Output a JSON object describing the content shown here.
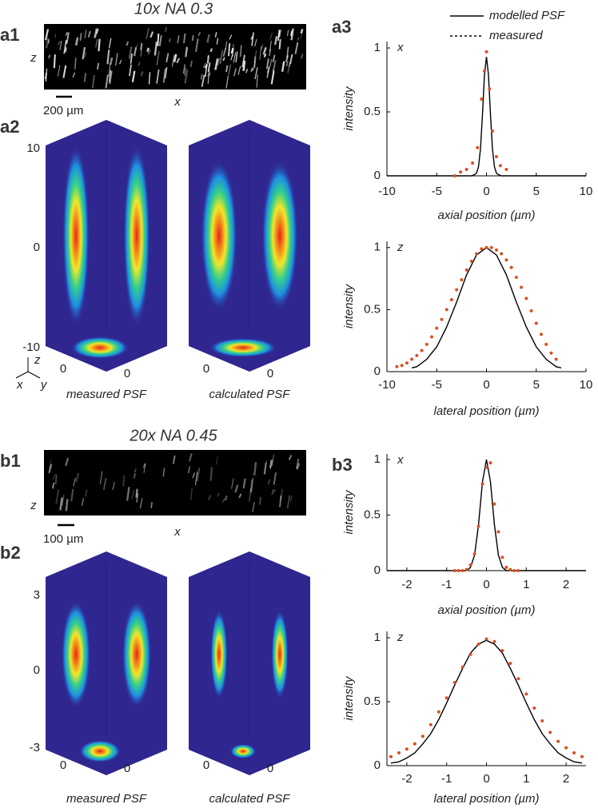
{
  "sections": [
    {
      "panel_image": "a1",
      "title": "10x NA 0.3",
      "z_label": "z",
      "x_label": "x",
      "scale_bar": "200 µm",
      "panel_psf": "a2",
      "psf_ticks": [
        10,
        0,
        -10
      ],
      "psf_base_ticks": [
        0,
        0
      ],
      "measured_label": "measured PSF",
      "calculated_label": "calculated PSF",
      "glyph": {
        "z": "z",
        "x": "x",
        "y": "y"
      },
      "panel_plots": "a3"
    },
    {
      "panel_image": "b1",
      "title": "20x NA 0.45",
      "z_label": "z",
      "x_label": "x",
      "scale_bar": "100 µm",
      "panel_psf": "b2",
      "psf_ticks": [
        3,
        0,
        -3
      ],
      "psf_base_ticks": [
        0,
        0
      ],
      "measured_label": "measured PSF",
      "calculated_label": "calculated PSF",
      "panel_plots": "b3"
    }
  ],
  "chart_data": [
    {
      "type": "line",
      "corner_label": "x",
      "xlabel": "axial position (µm)",
      "ylabel": "intensity",
      "xlim": [
        -10,
        10
      ],
      "xticks": [
        -10,
        -5,
        0,
        5,
        10
      ],
      "ylim": [
        0,
        1.05
      ],
      "yticks": [
        0,
        0.5,
        1
      ],
      "series": [
        {
          "name": "modelled PSF",
          "color": "#000000",
          "style": "line",
          "x": [
            -10,
            -1.5,
            -1.2,
            -1,
            -0.8,
            -0.6,
            -0.4,
            -0.2,
            0,
            0.2,
            0.4,
            0.6,
            0.8,
            1,
            1.2,
            1.5,
            10
          ],
          "values": [
            0,
            0,
            0.01,
            0.02,
            0.07,
            0.21,
            0.48,
            0.79,
            0.93,
            0.79,
            0.48,
            0.21,
            0.07,
            0.02,
            0.01,
            0,
            0
          ]
        },
        {
          "name": "measured",
          "color": "#d9501e",
          "style": "dots",
          "x": [
            -3.2,
            -2.6,
            -2,
            -1.4,
            -0.9,
            -0.5,
            -0.2,
            0,
            0.3,
            0.6,
            1,
            1.4,
            2
          ],
          "values": [
            0,
            0.03,
            0.05,
            0.1,
            0.22,
            0.6,
            0.82,
            0.97,
            0.68,
            0.35,
            0.15,
            0.08,
            0.05
          ]
        }
      ]
    },
    {
      "type": "line",
      "corner_label": "z",
      "xlabel": "lateral position (µm)",
      "ylabel": "intensity",
      "xlim": [
        -10,
        10
      ],
      "xticks": [
        -10,
        -5,
        0,
        5,
        10
      ],
      "ylim": [
        0,
        1.05
      ],
      "yticks": [
        0,
        0.5,
        1
      ],
      "series": [
        {
          "color": "#000000",
          "style": "line",
          "x": [
            -7.5,
            -7,
            -6,
            -5,
            -4,
            -3,
            -2,
            -1,
            0,
            1,
            2,
            3,
            4,
            5,
            6,
            7,
            7.5
          ],
          "values": [
            0.03,
            0.04,
            0.1,
            0.2,
            0.36,
            0.56,
            0.78,
            0.94,
            1,
            0.94,
            0.78,
            0.56,
            0.36,
            0.2,
            0.1,
            0.04,
            0.03
          ]
        },
        {
          "color": "#d9501e",
          "style": "dots",
          "x": [
            -9,
            -8.5,
            -8,
            -7.5,
            -7,
            -6.5,
            -6,
            -5.5,
            -5,
            -4.5,
            -4,
            -3.5,
            -3,
            -2.5,
            -2,
            -1.5,
            -1,
            -0.5,
            0,
            0.5,
            1,
            1.5,
            2,
            2.5,
            3,
            3.5,
            4,
            4.5,
            5,
            5.5,
            6,
            6.5,
            7
          ],
          "values": [
            0.04,
            0.05,
            0.07,
            0.1,
            0.13,
            0.17,
            0.22,
            0.28,
            0.35,
            0.42,
            0.5,
            0.58,
            0.66,
            0.74,
            0.82,
            0.89,
            0.95,
            0.99,
            1,
            1,
            0.98,
            0.95,
            0.9,
            0.84,
            0.76,
            0.68,
            0.59,
            0.49,
            0.39,
            0.3,
            0.22,
            0.15,
            0.1
          ]
        }
      ]
    },
    {
      "type": "line",
      "corner_label": "x",
      "xlabel": "axial position (µm)",
      "ylabel": "intensity",
      "xlim": [
        -2.5,
        2.5
      ],
      "xticks": [
        -2,
        -1,
        0,
        1,
        2
      ],
      "ylim": [
        0,
        1.05
      ],
      "yticks": [
        0,
        0.5,
        1
      ],
      "series": [
        {
          "color": "#000000",
          "style": "line",
          "x": [
            -2.5,
            -0.5,
            -0.4,
            -0.3,
            -0.2,
            -0.1,
            0,
            0.1,
            0.2,
            0.3,
            0.4,
            0.5,
            2.5
          ],
          "values": [
            0,
            0,
            0.03,
            0.14,
            0.41,
            0.8,
            1,
            0.8,
            0.41,
            0.14,
            0.03,
            0,
            0
          ]
        },
        {
          "color": "#d9501e",
          "style": "dots",
          "x": [
            -0.8,
            -0.7,
            -0.6,
            -0.5,
            -0.4,
            -0.3,
            -0.2,
            -0.1,
            0,
            0.1,
            0.2,
            0.3,
            0.4,
            0.5,
            0.6,
            0.7,
            0.8
          ],
          "values": [
            0,
            0,
            0,
            0.01,
            0.05,
            0.15,
            0.4,
            0.78,
            0.93,
            0.97,
            0.6,
            0.35,
            0.12,
            0.03,
            0.01,
            0,
            0
          ]
        }
      ]
    },
    {
      "type": "line",
      "corner_label": "z",
      "xlabel": "lateral position (µm)",
      "ylabel": "intensity",
      "xlim": [
        -2.5,
        2.5
      ],
      "xticks": [
        -2,
        -1,
        0,
        1,
        2
      ],
      "ylim": [
        0,
        1.05
      ],
      "yticks": [
        0,
        0.5,
        1
      ],
      "series": [
        {
          "color": "#000000",
          "style": "line",
          "x": [
            -2.4,
            -2.2,
            -2,
            -1.8,
            -1.6,
            -1.4,
            -1.2,
            -1,
            -0.8,
            -0.6,
            -0.4,
            -0.2,
            0,
            0.2,
            0.4,
            0.6,
            0.8,
            1,
            1.2,
            1.4,
            1.6,
            1.8,
            2,
            2.2,
            2.4
          ],
          "values": [
            0.02,
            0.03,
            0.06,
            0.1,
            0.17,
            0.25,
            0.36,
            0.49,
            0.63,
            0.76,
            0.88,
            0.95,
            0.98,
            0.95,
            0.88,
            0.76,
            0.63,
            0.49,
            0.36,
            0.25,
            0.17,
            0.1,
            0.06,
            0.03,
            0.02
          ]
        },
        {
          "color": "#d9501e",
          "style": "dots",
          "x": [
            -2.4,
            -2.2,
            -2,
            -1.8,
            -1.6,
            -1.4,
            -1.2,
            -1,
            -0.8,
            -0.6,
            -0.4,
            -0.2,
            0,
            0.2,
            0.4,
            0.6,
            0.8,
            1,
            1.2,
            1.4,
            1.6,
            1.8,
            2,
            2.2,
            2.4
          ],
          "values": [
            0.07,
            0.1,
            0.13,
            0.17,
            0.23,
            0.32,
            0.42,
            0.53,
            0.65,
            0.77,
            0.87,
            0.95,
            0.99,
            0.97,
            0.9,
            0.8,
            0.68,
            0.56,
            0.45,
            0.35,
            0.26,
            0.19,
            0.14,
            0.1,
            0.07
          ]
        }
      ]
    }
  ]
}
